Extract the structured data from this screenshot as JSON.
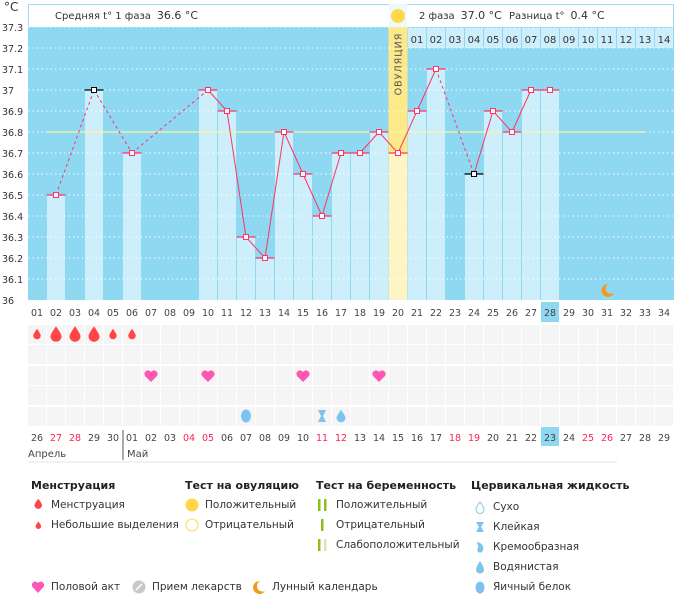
{
  "header": {
    "unit": "°C",
    "phase1_label": "Средняя t° 1 фаза",
    "phase1_value": "36.6 °C",
    "phase2_label": "2 фаза",
    "phase2_value": "37.0 °C",
    "diff_label": "Разница t°",
    "diff_value": "0.4 °C",
    "ovulation_label": "ОВУЛЯЦИЯ"
  },
  "chart_data": {
    "type": "line",
    "ylim": [
      36.0,
      37.3
    ],
    "y_ticks": [
      "36",
      "36.1",
      "36.2",
      "36.3",
      "36.4",
      "36.5",
      "36.6",
      "36.7",
      "36.8",
      "36.9",
      "37",
      "37.1",
      "37.2",
      "37.3"
    ],
    "grid": true,
    "cycle_days": [
      "01",
      "02",
      "03",
      "04",
      "05",
      "06",
      "07",
      "08",
      "09",
      "10",
      "11",
      "12",
      "13",
      "14",
      "15",
      "16",
      "17",
      "18",
      "19",
      "20",
      "21",
      "22",
      "23",
      "24",
      "25",
      "26",
      "27",
      "28",
      "29",
      "30",
      "31",
      "32",
      "33",
      "34"
    ],
    "temperatures": [
      null,
      36.5,
      null,
      37.0,
      null,
      36.7,
      null,
      null,
      null,
      37.0,
      36.9,
      36.3,
      36.2,
      36.8,
      36.6,
      36.4,
      36.7,
      36.7,
      36.8,
      36.7,
      36.9,
      37.1,
      null,
      36.6,
      36.9,
      36.8,
      37.0,
      37.0,
      null,
      null,
      null,
      null,
      null,
      null
    ],
    "excluded_days": [
      4,
      24
    ],
    "coverline": 36.8,
    "ovulation_day": 20,
    "current_day": 28,
    "luteal_days": [
      "01",
      "02",
      "03",
      "04",
      "05",
      "06",
      "07",
      "08",
      "09",
      "10",
      "11",
      "12",
      "13",
      "14"
    ],
    "moon_day": 31,
    "colors": {
      "background": "#8fd8f2",
      "bar": "#cdeefb",
      "line": "#ff3366",
      "coverline": "#fff3a0",
      "ovulation": "#fde98a",
      "excluded": "#000000"
    }
  },
  "events": {
    "menstruation": [
      {
        "day": 1,
        "size": "small"
      },
      {
        "day": 2,
        "size": "big"
      },
      {
        "day": 3,
        "size": "big"
      },
      {
        "day": 4,
        "size": "big"
      },
      {
        "day": 5,
        "size": "small"
      },
      {
        "day": 6,
        "size": "small"
      }
    ],
    "intercourse_days": [
      7,
      10,
      15,
      19
    ],
    "cervical": [
      {
        "day": 12,
        "type": "egg-white"
      },
      {
        "day": 16,
        "type": "sticky"
      },
      {
        "day": 17,
        "type": "watery"
      }
    ]
  },
  "dates": {
    "values": [
      "26",
      "27",
      "28",
      "29",
      "30",
      "01",
      "02",
      "03",
      "04",
      "05",
      "06",
      "07",
      "08",
      "09",
      "10",
      "11",
      "12",
      "13",
      "14",
      "15",
      "16",
      "17",
      "18",
      "19",
      "20",
      "21",
      "22",
      "23",
      "24",
      "25",
      "26",
      "27",
      "28",
      "29"
    ],
    "weekend_indices": [
      1,
      2,
      8,
      9,
      15,
      16,
      22,
      23,
      29,
      30
    ],
    "month1": "Апрель",
    "month2": "Май"
  },
  "legend": {
    "menstruation": {
      "title": "Менструация",
      "items": [
        "Менструация",
        "Небольшие выделения"
      ]
    },
    "ovulation_test": {
      "title": "Тест на овуляцию",
      "items": [
        "Положительный",
        "Отрицательный"
      ]
    },
    "pregnancy_test": {
      "title": "Тест на беременность",
      "items": [
        "Положительный",
        "Отрицательный",
        "Слабоположительный"
      ]
    },
    "cervical": {
      "title": "Цервикальная жидкость",
      "items": [
        "Сухо",
        "Клейкая",
        "Кремообразная",
        "Водянистая",
        "Яичный белок"
      ]
    },
    "other": [
      "Половой акт",
      "Прием лекарств",
      "Лунный календарь"
    ]
  }
}
